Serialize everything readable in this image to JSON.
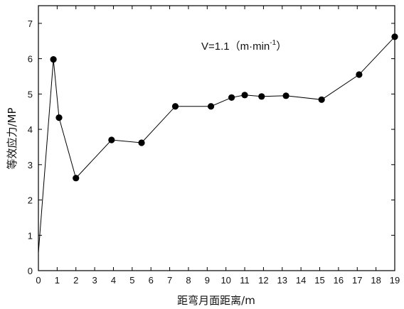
{
  "chart_data": {
    "type": "line",
    "xlabel": "距弯月面距离/m",
    "ylabel": "等效应力/MP",
    "annotation": {
      "prefix": "V=1.1（m·min",
      "sup": "-1",
      "suffix": "）"
    },
    "xlim": [
      0,
      19
    ],
    "ylim": [
      0,
      7.5
    ],
    "xticks": [
      0,
      1,
      2,
      3,
      4,
      5,
      6,
      7,
      8,
      9,
      10,
      11,
      12,
      13,
      14,
      15,
      16,
      17,
      18,
      19
    ],
    "yticks": [
      0,
      1,
      2,
      3,
      4,
      5,
      6,
      7
    ],
    "grid": false,
    "series": [
      {
        "x": [
          0,
          0.8,
          1.1,
          2.0,
          3.9,
          5.5,
          7.3,
          9.2,
          10.3,
          11.0,
          11.9,
          13.2,
          15.1,
          17.1,
          19.0
        ],
        "y": [
          0.5,
          5.98,
          4.33,
          2.62,
          3.7,
          3.62,
          4.65,
          4.65,
          4.9,
          4.97,
          4.93,
          4.95,
          4.84,
          5.55,
          6.62
        ]
      }
    ],
    "colors": {
      "line": "#000000",
      "marker": "#000000",
      "axis": "#000000"
    }
  }
}
